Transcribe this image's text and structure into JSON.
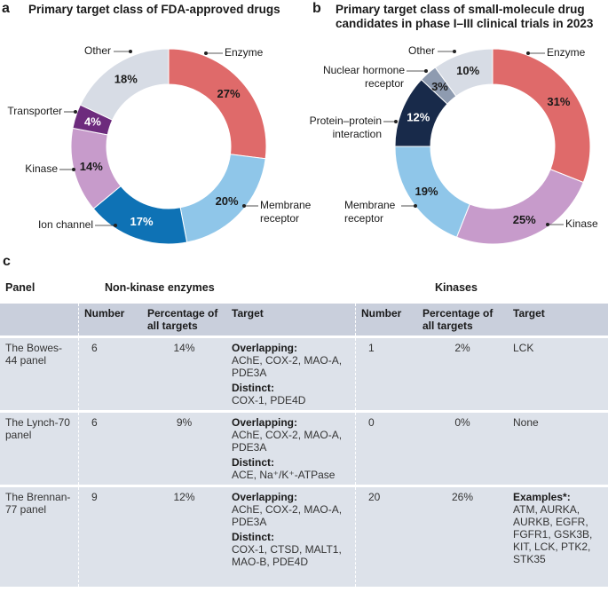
{
  "chart_data": [
    {
      "type": "pie",
      "letter": "a",
      "title": "Primary target class of FDA-approved drugs",
      "slices": [
        {
          "label": "Enzyme",
          "value": 27,
          "color": "#df6a6a",
          "text": "#1a1a1a"
        },
        {
          "label": "Membrane receptor",
          "value": 20,
          "color": "#8fc6e9",
          "text": "#1a1a1a"
        },
        {
          "label": "Ion channel",
          "value": 17,
          "color": "#0e72b5",
          "text": "#ffffff"
        },
        {
          "label": "Kinase",
          "value": 14,
          "color": "#c79bcb",
          "text": "#1a1a1a"
        },
        {
          "label": "Transporter",
          "value": 4,
          "color": "#6d2b7d",
          "text": "#ffffff"
        },
        {
          "label": "Other",
          "value": 18,
          "color": "#d7dce5",
          "text": "#1a1a1a"
        }
      ],
      "labels": {
        "enzyme": "Enzyme",
        "membrane1": "Membrane",
        "membrane2": "receptor",
        "ion": "Ion channel",
        "kinase": "Kinase",
        "transporter": "Transporter",
        "other": "Other"
      }
    },
    {
      "type": "pie",
      "letter": "b",
      "title1": "Primary target class of small-molecule drug",
      "title2": "candidates in phase I–III clinical trials in 2023",
      "slices": [
        {
          "label": "Enzyme",
          "value": 31,
          "color": "#df6a6a",
          "text": "#1a1a1a"
        },
        {
          "label": "Kinase",
          "value": 25,
          "color": "#c79bcb",
          "text": "#1a1a1a"
        },
        {
          "label": "Membrane receptor",
          "value": 19,
          "color": "#8fc6e9",
          "text": "#1a1a1a"
        },
        {
          "label": "Protein–protein interaction",
          "value": 12,
          "color": "#182a4a",
          "text": "#ffffff"
        },
        {
          "label": "Nuclear hormone receptor",
          "value": 3,
          "color": "#8e9bb0",
          "text": "#1a1a1a"
        },
        {
          "label": "Other",
          "value": 10,
          "color": "#d7dce5",
          "text": "#1a1a1a"
        }
      ],
      "labels": {
        "enzyme": "Enzyme",
        "kinase": "Kinase",
        "membrane1": "Membrane",
        "membrane2": "receptor",
        "ppi1": "Protein–protein",
        "ppi2": "interaction",
        "nhr1": "Nuclear hormone",
        "nhr2": "receptor",
        "other": "Other"
      }
    }
  ],
  "table": {
    "letter": "c",
    "group_headers": [
      "Panel",
      "Non-kinase enzymes",
      "Kinases"
    ],
    "sub_headers": [
      "Number",
      "Percentage of all targets",
      "Target",
      "Number",
      "Percentage of all targets",
      "Target"
    ],
    "overlapping_label": "Overlapping:",
    "distinct_label": "Distinct:",
    "examples_label": "Examples*:",
    "rows": [
      {
        "panel": "The Bowes-44 panel",
        "ne_number": "6",
        "ne_pct": "14%",
        "ne_overlap": "AChE, COX-2, MAO-A, PDE3A",
        "ne_distinct": "COX-1, PDE4D",
        "k_number": "1",
        "k_pct": "2%",
        "k_target": "LCK"
      },
      {
        "panel": "The Lynch-70 panel",
        "ne_number": "6",
        "ne_pct": "9%",
        "ne_overlap": "AChE, COX-2, MAO-A, PDE3A",
        "ne_distinct": "ACE, Na⁺/K⁺-ATPase",
        "k_number": "0",
        "k_pct": "0%",
        "k_target": "None"
      },
      {
        "panel": "The Brennan-77 panel",
        "ne_number": "9",
        "ne_pct": "12%",
        "ne_overlap": "AChE, COX-2, MAO-A, PDE3A",
        "ne_distinct": "COX-1, CTSD, MALT1, MAO-B, PDE4D",
        "k_number": "20",
        "k_pct": "26%",
        "k_target": "ATM, AURKA, AURKB, EGFR, FGFR1, GSK3B, KIT, LCK, PTK2, STK35"
      }
    ]
  }
}
